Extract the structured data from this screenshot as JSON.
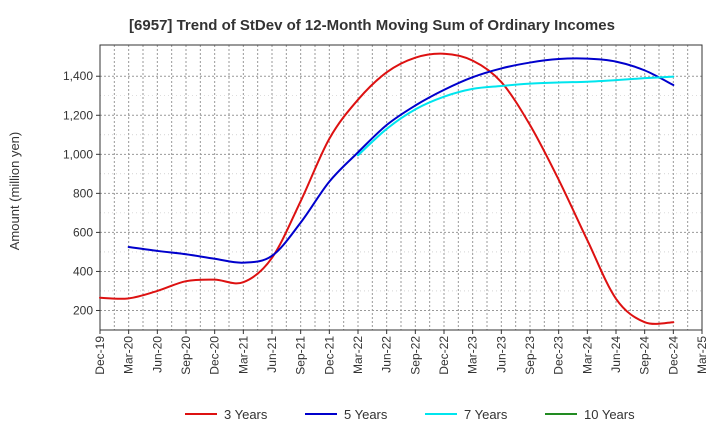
{
  "chart_data": {
    "type": "line",
    "title": "[6957]  Trend of StDev of 12-Month Moving Sum of Ordinary Incomes",
    "xlabel": "",
    "ylabel": "Amount (million yen)",
    "ylim": [
      100,
      1560
    ],
    "yticks": [
      200,
      400,
      600,
      800,
      1000,
      1200,
      1400
    ],
    "ytick_labels": [
      "200",
      "400",
      "600",
      "800",
      "1,000",
      "1,200",
      "1,400"
    ],
    "x_ticks": [
      "Dec-19",
      "Mar-20",
      "Jun-20",
      "Sep-20",
      "Dec-20",
      "Mar-21",
      "Jun-21",
      "Sep-21",
      "Dec-21",
      "Mar-22",
      "Jun-22",
      "Sep-22",
      "Dec-22",
      "Mar-23",
      "Jun-23",
      "Sep-23",
      "Dec-23",
      "Mar-24",
      "Jun-24",
      "Sep-24",
      "Dec-24",
      "Mar-25"
    ],
    "grid": true,
    "legend_position": "bottom",
    "series": [
      {
        "name": "3 Years",
        "color": "#dd1111",
        "points": [
          [
            "Dec-19",
            265
          ],
          [
            "Mar-20",
            262
          ],
          [
            "Jun-20",
            300
          ],
          [
            "Sep-20",
            350
          ],
          [
            "Dec-20",
            358
          ],
          [
            "Mar-21",
            345
          ],
          [
            "Jun-21",
            470
          ],
          [
            "Sep-21",
            760
          ],
          [
            "Dec-21",
            1080
          ],
          [
            "Mar-22",
            1280
          ],
          [
            "Jun-22",
            1420
          ],
          [
            "Sep-22",
            1495
          ],
          [
            "Dec-22",
            1515
          ],
          [
            "Mar-23",
            1480
          ],
          [
            "Jun-23",
            1370
          ],
          [
            "Sep-23",
            1150
          ],
          [
            "Dec-23",
            870
          ],
          [
            "Mar-24",
            560
          ],
          [
            "Jun-24",
            260
          ],
          [
            "Sep-24",
            140
          ],
          [
            "Dec-24",
            140
          ]
        ]
      },
      {
        "name": "5 Years",
        "color": "#0000cc",
        "points": [
          [
            "Mar-20",
            525
          ],
          [
            "Jun-20",
            505
          ],
          [
            "Sep-20",
            488
          ],
          [
            "Dec-20",
            465
          ],
          [
            "Mar-21",
            445
          ],
          [
            "Jun-21",
            480
          ],
          [
            "Sep-21",
            650
          ],
          [
            "Dec-21",
            860
          ],
          [
            "Mar-22",
            1010
          ],
          [
            "Jun-22",
            1150
          ],
          [
            "Sep-22",
            1250
          ],
          [
            "Dec-22",
            1330
          ],
          [
            "Mar-23",
            1395
          ],
          [
            "Jun-23",
            1440
          ],
          [
            "Sep-23",
            1470
          ],
          [
            "Dec-23",
            1488
          ],
          [
            "Mar-24",
            1490
          ],
          [
            "Jun-24",
            1475
          ],
          [
            "Sep-24",
            1430
          ],
          [
            "Dec-24",
            1355
          ]
        ]
      },
      {
        "name": "7 Years",
        "color": "#00e5ee",
        "points": [
          [
            "Mar-22",
            995
          ],
          [
            "Jun-22",
            1130
          ],
          [
            "Sep-22",
            1230
          ],
          [
            "Dec-22",
            1295
          ],
          [
            "Mar-23",
            1335
          ],
          [
            "Jun-23",
            1350
          ],
          [
            "Sep-23",
            1362
          ],
          [
            "Dec-23",
            1368
          ],
          [
            "Mar-24",
            1372
          ],
          [
            "Jun-24",
            1380
          ],
          [
            "Sep-24",
            1390
          ],
          [
            "Dec-24",
            1398
          ]
        ]
      },
      {
        "name": "10 Years",
        "color": "#228b22",
        "points": []
      }
    ]
  }
}
